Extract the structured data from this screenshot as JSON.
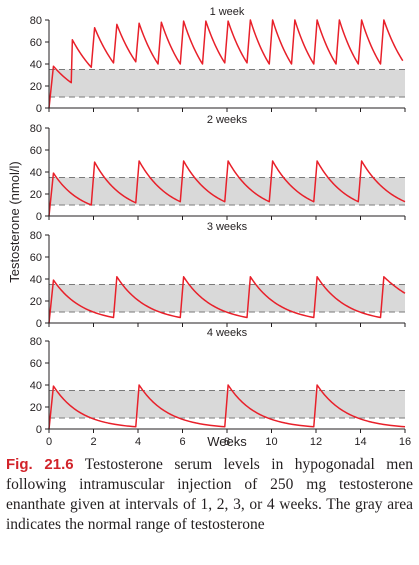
{
  "figure": {
    "label": "Fig. 21.6",
    "caption": "Testosterone serum levels in hypogonadal men following intramuscular injection of 250 mg testosterone enanthate given at intervals of 1, 2, 3, or 4 weeks. The gray area indicates the normal range of testosterone"
  },
  "colors": {
    "curve": "#e8202a",
    "normal_band": "#d9d9d9",
    "axis": "#231f20",
    "caption_label": "#d2232a"
  },
  "chart_data": {
    "type": "line",
    "xlabel": "Weeks",
    "ylabel": "Testosterone (nmol/l)",
    "xlim": [
      0,
      16
    ],
    "ylim": [
      0,
      80
    ],
    "xticks": [
      0,
      2,
      4,
      6,
      8,
      10,
      12,
      14,
      16
    ],
    "yticks": [
      0,
      20,
      40,
      60,
      80
    ],
    "grid": false,
    "normal_range": [
      10,
      35
    ],
    "panels": [
      {
        "title": "1 week",
        "x": [
          0,
          0.2,
          1.0,
          1.05,
          1.9,
          2.05,
          2.9,
          3.05,
          3.9,
          4.05,
          4.9,
          5.05,
          5.9,
          6.05,
          6.9,
          7.05,
          7.9,
          8.05,
          8.9,
          9.05,
          9.9,
          10.05,
          10.9,
          11.05,
          11.9,
          12.05,
          12.9,
          13.05,
          13.9,
          14.05,
          14.9,
          15.05,
          15.9
        ],
        "y": [
          0,
          38,
          23,
          62,
          37,
          73,
          41,
          76,
          42,
          77,
          40,
          78,
          40,
          79,
          40,
          79,
          41,
          79,
          41,
          80,
          40,
          80,
          40,
          80,
          40,
          80,
          40,
          80,
          40,
          80,
          40,
          80,
          43
        ]
      },
      {
        "title": "2 weeks",
        "x": [
          0,
          0.2,
          1.9,
          2.05,
          3.9,
          4.05,
          5.9,
          6.05,
          7.9,
          8.05,
          9.9,
          10.05,
          11.9,
          12.05,
          13.9,
          14.05,
          16
        ],
        "y": [
          0,
          39,
          10,
          49,
          12,
          50,
          13,
          50,
          13,
          50,
          13,
          50,
          13,
          50,
          13,
          50,
          13
        ]
      },
      {
        "title": "3 weeks",
        "x": [
          0,
          0.2,
          2.9,
          3.05,
          5.9,
          6.05,
          8.9,
          9.05,
          11.9,
          12.05,
          14.9,
          15.05,
          16
        ],
        "y": [
          0,
          39,
          5,
          42,
          5,
          42,
          5,
          42,
          5,
          42,
          5,
          42,
          27
        ]
      },
      {
        "title": "4 weeks",
        "x": [
          0,
          0.2,
          3.9,
          4.05,
          7.9,
          8.05,
          11.9,
          12.05,
          16
        ],
        "y": [
          0,
          39,
          2,
          40,
          2,
          40,
          2,
          40,
          2
        ]
      }
    ]
  }
}
